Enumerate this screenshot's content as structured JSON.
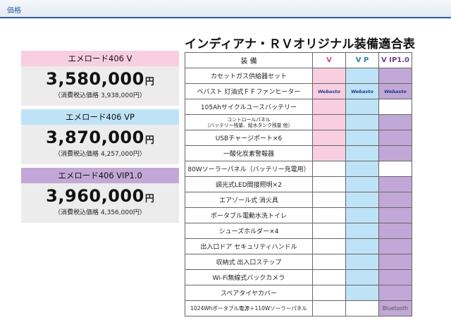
{
  "header": {
    "label": "価格"
  },
  "title": "インディアナ・ＲＶオリジナル装備適合表",
  "models": [
    {
      "name": "エメロード406 V",
      "price": "3,580,000",
      "unit": "円",
      "tax": "（消費税込価格 3,938,000円）",
      "color": "#f8cfe0"
    },
    {
      "name": "エメロード406 VP",
      "price": "3,870,000",
      "unit": "円",
      "tax": "（消費税込価格 4,257,000円）",
      "color": "#bfe3f6"
    },
    {
      "name": "エメロード406 VIP1.0",
      "price": "3,960,000",
      "unit": "円",
      "tax": "（消費税込価格 4,356,000円）",
      "color": "#c2a8d6"
    }
  ],
  "table": {
    "headers": {
      "equipment": "装 備",
      "v": "V",
      "vp": "V P",
      "vip": "V IP1.0"
    },
    "rows": [
      {
        "item": "カセットガス供給器セット",
        "v": true,
        "vp": true,
        "vip": true
      },
      {
        "item": "ベバスト 灯油式ＦＦファンヒーター",
        "v": "Webasto",
        "vp": "Webasto",
        "vip": "Webasto"
      },
      {
        "item": "105Ahサイクルユースバッテリー",
        "v": true,
        "vp": true,
        "vip": false
      },
      {
        "item": "コントロールパネル",
        "sub": "（バッテリー残量、給水タンク残量 他）",
        "v": true,
        "vp": true,
        "vip": true
      },
      {
        "item": "USBチャージポート×6",
        "v": true,
        "vp": true,
        "vip": true
      },
      {
        "item": "一酸化炭素警報器",
        "v": true,
        "vp": true,
        "vip": true
      },
      {
        "item": "80Wソーラーパネル（バッテリー充電用）",
        "v": false,
        "vp": true,
        "vip": false
      },
      {
        "item": "調光式LED間接照明×2",
        "v": false,
        "vp": true,
        "vip": true
      },
      {
        "item": "エアゾール式 消火具",
        "v": false,
        "vp": true,
        "vip": true
      },
      {
        "item": "ポータブル電動水洗トイレ",
        "v": false,
        "vp": true,
        "vip": true
      },
      {
        "item": "シューズホルダー×4",
        "v": false,
        "vp": true,
        "vip": true
      },
      {
        "item": "出入口ドア セキュリティハンドル",
        "v": false,
        "vp": true,
        "vip": true
      },
      {
        "item": "収納式 出入口ステップ",
        "v": false,
        "vp": true,
        "vip": true
      },
      {
        "item": "Wi-Fi無線式バックカメラ",
        "v": false,
        "vp": true,
        "vip": true
      },
      {
        "item": "スペアタイヤカバー",
        "v": false,
        "vp": true,
        "vip": true
      },
      {
        "item": "1024Whポータブル電源＋110Wソーラーパネル",
        "v": false,
        "vp": false,
        "vip": "Bluetooth"
      }
    ]
  },
  "colors": {
    "v": "#f8cfe0",
    "vp": "#bfe3f6",
    "vip": "#c2a8d6",
    "header_line": "#2f5c9c"
  }
}
